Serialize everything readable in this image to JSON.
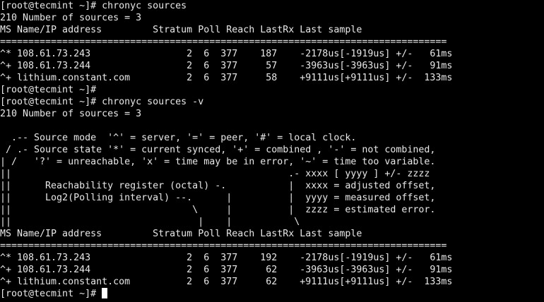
{
  "terminal": {
    "lines": [
      "[root@tecmint ~]# chronyc sources",
      "210 Number of sources = 3",
      "MS Name/IP address         Stratum Poll Reach LastRx Last sample",
      "===============================================================================",
      "^* 108.61.73.243                 2  6  377    187    -2178us[-1919us] +/-   61ms",
      "^+ 108.61.73.244                 2  6  377     57    -3963us[-3963us] +/-   91ms",
      "^+ lithium.constant.com          2  6  377     58    +9111us[+9111us] +/-  133ms",
      "[root@tecmint ~]#",
      "[root@tecmint ~]# chronyc sources -v",
      "210 Number of sources = 3",
      "",
      "  .-- Source mode  '^' = server, '=' = peer, '#' = local clock.",
      " / .- Source state '*' = current synced, '+' = combined , '-' = not combined,",
      "| /   '?' = unreachable, 'x' = time may be in error, '~' = time too variable.",
      "||                                                 .- xxxx [ yyyy ] +/- zzzz",
      "||      Reachability register (octal) -.           |  xxxx = adjusted offset,",
      "||      Log2(Polling interval) --.      |          |  yyyy = measured offset,",
      "||                                \\     |          |  zzzz = estimated error.",
      "||                                 |    |           \\",
      "MS Name/IP address         Stratum Poll Reach LastRx Last sample",
      "===============================================================================",
      "^* 108.61.73.243                 2  6  377    192    -2178us[-1919us] +/-   61ms",
      "^+ 108.61.73.244                 2  6  377     62    -3963us[-3963us] +/-   91ms",
      "^+ lithium.constant.com          2  6  377     62    +9111us[+9111us] +/-  133ms"
    ],
    "prompt": "[root@tecmint ~]# "
  }
}
